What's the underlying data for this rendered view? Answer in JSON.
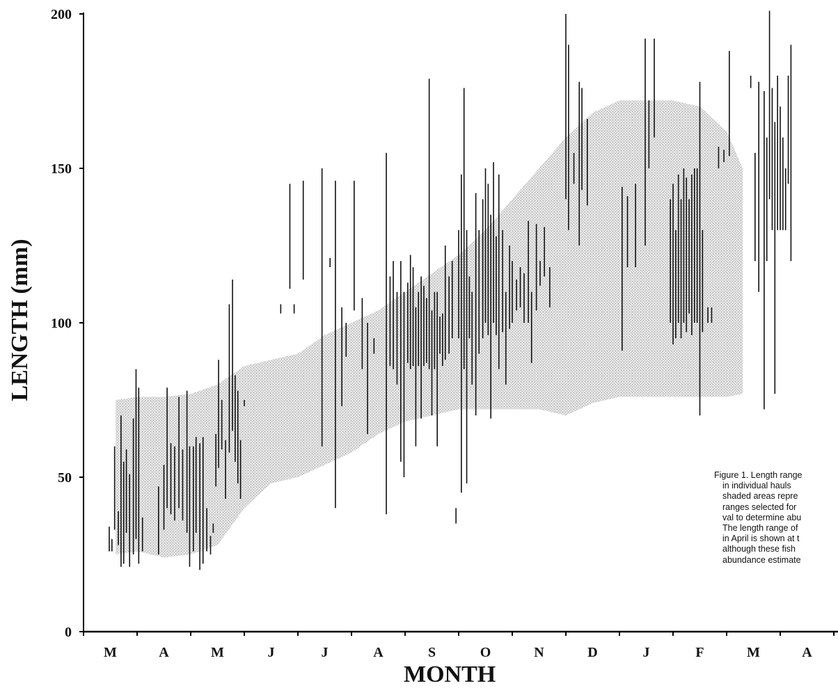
{
  "chart_data": {
    "type": "range-bars",
    "title": "",
    "ylabel": "LENGTH (mm)",
    "xlabel": "MONTH",
    "ylim": [
      0,
      200
    ],
    "yticks": [
      0,
      50,
      100,
      150,
      200
    ],
    "ytick_labels": [
      "0",
      "50",
      "100",
      "150",
      "200"
    ],
    "months": [
      "M",
      "A",
      "M",
      "J",
      "J",
      "A",
      "S",
      "O",
      "N",
      "D",
      "J",
      "F",
      "M",
      "A"
    ],
    "grid": false,
    "series": [
      {
        "name": "",
        "kind": "shaded",
        "description": "length ranges selected for each time interval",
        "ranges": [
          {
            "x": 0.6,
            "lo": 25,
            "hi": 75
          },
          {
            "x": 1.0,
            "lo": 26,
            "hi": 76
          },
          {
            "x": 1.5,
            "lo": 24,
            "hi": 76
          },
          {
            "x": 2.0,
            "lo": 25,
            "hi": 77
          },
          {
            "x": 2.5,
            "lo": 28,
            "hi": 80
          },
          {
            "x": 3.0,
            "lo": 40,
            "hi": 86
          },
          {
            "x": 3.5,
            "lo": 48,
            "hi": 88
          },
          {
            "x": 4.0,
            "lo": 50,
            "hi": 90
          },
          {
            "x": 4.5,
            "lo": 54,
            "hi": 96
          },
          {
            "x": 5.0,
            "lo": 58,
            "hi": 100
          },
          {
            "x": 5.5,
            "lo": 64,
            "hi": 104
          },
          {
            "x": 6.0,
            "lo": 68,
            "hi": 110
          },
          {
            "x": 6.5,
            "lo": 70,
            "hi": 116
          },
          {
            "x": 7.0,
            "lo": 72,
            "hi": 122
          },
          {
            "x": 7.5,
            "lo": 72,
            "hi": 130
          },
          {
            "x": 8.0,
            "lo": 72,
            "hi": 140
          },
          {
            "x": 8.5,
            "lo": 72,
            "hi": 150
          },
          {
            "x": 9.0,
            "lo": 70,
            "hi": 160
          },
          {
            "x": 9.5,
            "lo": 74,
            "hi": 168
          },
          {
            "x": 10.0,
            "lo": 76,
            "hi": 172
          },
          {
            "x": 10.5,
            "lo": 76,
            "hi": 172
          },
          {
            "x": 11.0,
            "lo": 76,
            "hi": 172
          },
          {
            "x": 11.5,
            "lo": 76,
            "hi": 170
          },
          {
            "x": 12.0,
            "lo": 76,
            "hi": 162
          },
          {
            "x": 12.3,
            "lo": 77,
            "hi": 150
          }
        ]
      },
      {
        "name": "",
        "kind": "hauls",
        "description": "length ranges in individual hauls",
        "ranges": [
          {
            "x": 0.48,
            "lo": 26,
            "hi": 34
          },
          {
            "x": 0.53,
            "lo": 26,
            "hi": 30
          },
          {
            "x": 0.58,
            "lo": 33,
            "hi": 60
          },
          {
            "x": 0.65,
            "lo": 28,
            "hi": 39
          },
          {
            "x": 0.7,
            "lo": 21,
            "hi": 70
          },
          {
            "x": 0.75,
            "lo": 22,
            "hi": 55
          },
          {
            "x": 0.8,
            "lo": 32,
            "hi": 59
          },
          {
            "x": 0.86,
            "lo": 21,
            "hi": 51
          },
          {
            "x": 0.93,
            "lo": 25,
            "hi": 69
          },
          {
            "x": 0.98,
            "lo": 30,
            "hi": 85
          },
          {
            "x": 1.03,
            "lo": 22,
            "hi": 79
          },
          {
            "x": 1.1,
            "lo": 26,
            "hi": 37
          },
          {
            "x": 1.4,
            "lo": 25,
            "hi": 47
          },
          {
            "x": 1.5,
            "lo": 33,
            "hi": 54
          },
          {
            "x": 1.56,
            "lo": 40,
            "hi": 79
          },
          {
            "x": 1.63,
            "lo": 38,
            "hi": 61
          },
          {
            "x": 1.7,
            "lo": 36,
            "hi": 60
          },
          {
            "x": 1.78,
            "lo": 40,
            "hi": 76
          },
          {
            "x": 1.85,
            "lo": 36,
            "hi": 59
          },
          {
            "x": 1.93,
            "lo": 32,
            "hi": 78
          },
          {
            "x": 1.98,
            "lo": 21,
            "hi": 60
          },
          {
            "x": 2.05,
            "lo": 26,
            "hi": 60
          },
          {
            "x": 2.1,
            "lo": 32,
            "hi": 63
          },
          {
            "x": 2.17,
            "lo": 20,
            "hi": 61
          },
          {
            "x": 2.23,
            "lo": 22,
            "hi": 63
          },
          {
            "x": 2.3,
            "lo": 26,
            "hi": 40
          },
          {
            "x": 2.37,
            "lo": 25,
            "hi": 31
          },
          {
            "x": 2.42,
            "lo": 32,
            "hi": 35
          },
          {
            "x": 2.47,
            "lo": 47,
            "hi": 64
          },
          {
            "x": 2.52,
            "lo": 53,
            "hi": 88
          },
          {
            "x": 2.58,
            "lo": 59,
            "hi": 75
          },
          {
            "x": 2.65,
            "lo": 43,
            "hi": 62
          },
          {
            "x": 2.72,
            "lo": 58,
            "hi": 106
          },
          {
            "x": 2.78,
            "lo": 65,
            "hi": 114
          },
          {
            "x": 2.83,
            "lo": 55,
            "hi": 83
          },
          {
            "x": 2.88,
            "lo": 48,
            "hi": 78
          },
          {
            "x": 2.93,
            "lo": 43,
            "hi": 62
          },
          {
            "x": 3.0,
            "lo": 73,
            "hi": 75
          },
          {
            "x": 3.68,
            "lo": 103,
            "hi": 106
          },
          {
            "x": 3.85,
            "lo": 111,
            "hi": 145
          },
          {
            "x": 3.93,
            "lo": 103,
            "hi": 106
          },
          {
            "x": 4.1,
            "lo": 114,
            "hi": 146
          },
          {
            "x": 4.45,
            "lo": 60,
            "hi": 150
          },
          {
            "x": 4.6,
            "lo": 118,
            "hi": 121
          },
          {
            "x": 4.7,
            "lo": 40,
            "hi": 146
          },
          {
            "x": 4.82,
            "lo": 73,
            "hi": 105
          },
          {
            "x": 4.9,
            "lo": 89,
            "hi": 100
          },
          {
            "x": 5.05,
            "lo": 104,
            "hi": 146
          },
          {
            "x": 5.2,
            "lo": 85,
            "hi": 108
          },
          {
            "x": 5.3,
            "lo": 64,
            "hi": 100
          },
          {
            "x": 5.42,
            "lo": 90,
            "hi": 95
          },
          {
            "x": 5.65,
            "lo": 38,
            "hi": 155
          },
          {
            "x": 5.72,
            "lo": 86,
            "hi": 115
          },
          {
            "x": 5.78,
            "lo": 85,
            "hi": 120
          },
          {
            "x": 5.85,
            "lo": 80,
            "hi": 110
          },
          {
            "x": 5.92,
            "lo": 55,
            "hi": 120
          },
          {
            "x": 5.98,
            "lo": 50,
            "hi": 110
          },
          {
            "x": 6.05,
            "lo": 87,
            "hi": 113
          },
          {
            "x": 6.1,
            "lo": 85,
            "hi": 122
          },
          {
            "x": 6.15,
            "lo": 86,
            "hi": 118
          },
          {
            "x": 6.2,
            "lo": 60,
            "hi": 105
          },
          {
            "x": 6.25,
            "lo": 86,
            "hi": 110
          },
          {
            "x": 6.3,
            "lo": 69,
            "hi": 115
          },
          {
            "x": 6.35,
            "lo": 86,
            "hi": 112
          },
          {
            "x": 6.4,
            "lo": 87,
            "hi": 108
          },
          {
            "x": 6.45,
            "lo": 85,
            "hi": 179
          },
          {
            "x": 6.5,
            "lo": 70,
            "hi": 104
          },
          {
            "x": 6.55,
            "lo": 85,
            "hi": 110
          },
          {
            "x": 6.6,
            "lo": 60,
            "hi": 110
          },
          {
            "x": 6.65,
            "lo": 90,
            "hi": 102
          },
          {
            "x": 6.7,
            "lo": 86,
            "hi": 103
          },
          {
            "x": 6.75,
            "lo": 88,
            "hi": 125
          },
          {
            "x": 6.82,
            "lo": 90,
            "hi": 115
          },
          {
            "x": 6.88,
            "lo": 95,
            "hi": 120
          },
          {
            "x": 6.95,
            "lo": 35,
            "hi": 40
          },
          {
            "x": 7.0,
            "lo": 95,
            "hi": 130
          },
          {
            "x": 7.05,
            "lo": 45,
            "hi": 148
          },
          {
            "x": 7.1,
            "lo": 85,
            "hi": 176
          },
          {
            "x": 7.15,
            "lo": 48,
            "hi": 130
          },
          {
            "x": 7.2,
            "lo": 95,
            "hi": 115
          },
          {
            "x": 7.25,
            "lo": 80,
            "hi": 110
          },
          {
            "x": 7.32,
            "lo": 70,
            "hi": 142
          },
          {
            "x": 7.38,
            "lo": 90,
            "hi": 130
          },
          {
            "x": 7.45,
            "lo": 95,
            "hi": 140
          },
          {
            "x": 7.5,
            "lo": 100,
            "hi": 150
          },
          {
            "x": 7.55,
            "lo": 96,
            "hi": 145
          },
          {
            "x": 7.6,
            "lo": 69,
            "hi": 135
          },
          {
            "x": 7.65,
            "lo": 100,
            "hi": 152
          },
          {
            "x": 7.7,
            "lo": 96,
            "hi": 128
          },
          {
            "x": 7.75,
            "lo": 85,
            "hi": 148
          },
          {
            "x": 7.82,
            "lo": 97,
            "hi": 130
          },
          {
            "x": 7.88,
            "lo": 80,
            "hi": 110
          },
          {
            "x": 7.95,
            "lo": 98,
            "hi": 125
          },
          {
            "x": 8.0,
            "lo": 100,
            "hi": 120
          },
          {
            "x": 8.08,
            "lo": 104,
            "hi": 114
          },
          {
            "x": 8.15,
            "lo": 105,
            "hi": 118
          },
          {
            "x": 8.22,
            "lo": 100,
            "hi": 116
          },
          {
            "x": 8.3,
            "lo": 100,
            "hi": 133
          },
          {
            "x": 8.36,
            "lo": 87,
            "hi": 110
          },
          {
            "x": 8.45,
            "lo": 104,
            "hi": 132
          },
          {
            "x": 8.52,
            "lo": 112,
            "hi": 120
          },
          {
            "x": 8.6,
            "lo": 115,
            "hi": 131
          },
          {
            "x": 8.7,
            "lo": 105,
            "hi": 118
          },
          {
            "x": 9.0,
            "lo": 140,
            "hi": 200
          },
          {
            "x": 9.05,
            "lo": 130,
            "hi": 190
          },
          {
            "x": 9.15,
            "lo": 145,
            "hi": 155
          },
          {
            "x": 9.25,
            "lo": 125,
            "hi": 178
          },
          {
            "x": 9.3,
            "lo": 143,
            "hi": 176
          },
          {
            "x": 9.4,
            "lo": 138,
            "hi": 166
          },
          {
            "x": 10.05,
            "lo": 91,
            "hi": 144
          },
          {
            "x": 10.15,
            "lo": 118,
            "hi": 141
          },
          {
            "x": 10.3,
            "lo": 118,
            "hi": 145
          },
          {
            "x": 10.48,
            "lo": 125,
            "hi": 192
          },
          {
            "x": 10.55,
            "lo": 150,
            "hi": 172
          },
          {
            "x": 10.65,
            "lo": 160,
            "hi": 192
          },
          {
            "x": 10.95,
            "lo": 100,
            "hi": 140
          },
          {
            "x": 11.0,
            "lo": 93,
            "hi": 145
          },
          {
            "x": 11.05,
            "lo": 95,
            "hi": 130
          },
          {
            "x": 11.1,
            "lo": 100,
            "hi": 148
          },
          {
            "x": 11.15,
            "lo": 95,
            "hi": 140
          },
          {
            "x": 11.2,
            "lo": 100,
            "hi": 150
          },
          {
            "x": 11.25,
            "lo": 97,
            "hi": 147
          },
          {
            "x": 11.3,
            "lo": 103,
            "hi": 140
          },
          {
            "x": 11.35,
            "lo": 96,
            "hi": 148
          },
          {
            "x": 11.4,
            "lo": 100,
            "hi": 150
          },
          {
            "x": 11.45,
            "lo": 100,
            "hi": 150
          },
          {
            "x": 11.5,
            "lo": 70,
            "hi": 178
          },
          {
            "x": 11.55,
            "lo": 97,
            "hi": 130
          },
          {
            "x": 11.65,
            "lo": 100,
            "hi": 105
          },
          {
            "x": 11.72,
            "lo": 100,
            "hi": 105
          },
          {
            "x": 11.85,
            "lo": 150,
            "hi": 157
          },
          {
            "x": 11.95,
            "lo": 152,
            "hi": 156
          },
          {
            "x": 12.05,
            "lo": 154,
            "hi": 188
          },
          {
            "x": 12.45,
            "lo": 176,
            "hi": 180
          },
          {
            "x": 12.53,
            "lo": 120,
            "hi": 155
          },
          {
            "x": 12.6,
            "lo": 110,
            "hi": 178
          },
          {
            "x": 12.7,
            "lo": 72,
            "hi": 175
          },
          {
            "x": 12.75,
            "lo": 120,
            "hi": 160
          },
          {
            "x": 12.8,
            "lo": 140,
            "hi": 201
          },
          {
            "x": 12.85,
            "lo": 130,
            "hi": 176
          },
          {
            "x": 12.9,
            "lo": 77,
            "hi": 165
          },
          {
            "x": 12.95,
            "lo": 130,
            "hi": 180
          },
          {
            "x": 13.0,
            "lo": 130,
            "hi": 170
          },
          {
            "x": 13.05,
            "lo": 130,
            "hi": 160
          },
          {
            "x": 13.1,
            "lo": 130,
            "hi": 150
          },
          {
            "x": 13.15,
            "lo": 145,
            "hi": 180
          },
          {
            "x": 13.2,
            "lo": 120,
            "hi": 190
          }
        ]
      }
    ],
    "annotation": [
      "Figure 1. Length range",
      "in individual hauls",
      "shaded areas repre",
      "ranges selected for",
      "val to determine abu",
      "The length range of",
      "in April is shown at t",
      "although these fish",
      "abundance estimate"
    ]
  }
}
